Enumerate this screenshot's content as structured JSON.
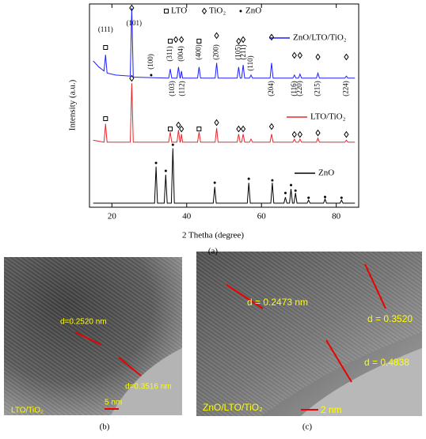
{
  "chart_data": {
    "type": "line",
    "x_label": "2 Thetha (degree)",
    "y_label": "Intensity (a.u.)",
    "xlim": [
      14,
      86
    ],
    "xticks": [
      20,
      40,
      60,
      80
    ],
    "ylim": [
      0,
      100
    ],
    "phase_legend": [
      "LTO",
      "TiO₂",
      "ZnO"
    ],
    "annotations": [
      "(111)",
      "(101)",
      "(100)",
      "(311)",
      "(004)",
      "(400)",
      "(200)",
      "(105)",
      "(211)",
      "(110)",
      "(103)",
      "(112)",
      "(204)",
      "(116)",
      "(220)",
      "(215)",
      "(224)"
    ],
    "series": [
      {
        "name": "ZnO/LTO/TiO₂",
        "color": "#1f1fff",
        "x": [
          15,
          16.5,
          17.9,
          18.3,
          18.7,
          21,
          24.9,
          25.3,
          25.7,
          35.2,
          35.6,
          36.0,
          37.4,
          37.8,
          38.2,
          38.3,
          38.6,
          38.9,
          42.9,
          43.3,
          43.7,
          47.6,
          48.0,
          48.4,
          53.5,
          53.9,
          54.3,
          54.7,
          55.1,
          55.5,
          56.8,
          57.2,
          57.6,
          62.3,
          62.7,
          63.1,
          68.4,
          68.8,
          69.2,
          69.9,
          70.3,
          70.7,
          74.7,
          75.1,
          75.5,
          82.3,
          82.7,
          83.1,
          85
        ],
        "values": [
          72,
          69,
          67,
          75,
          66,
          65,
          64.5,
          98,
          64,
          63.5,
          68,
          63.5,
          63.5,
          69,
          63.5,
          63.5,
          67,
          63.5,
          63.5,
          69,
          63.5,
          63.5,
          71,
          63.5,
          63.5,
          69,
          63.5,
          63.5,
          70,
          63.5,
          63.5,
          65,
          63.5,
          63.5,
          71,
          63.5,
          63.5,
          65,
          63.5,
          63.5,
          65.5,
          63.5,
          63.5,
          66,
          63.5,
          63.5,
          64.5,
          63.5,
          63.5
        ]
      },
      {
        "name": "LTO/TiO₂",
        "color": "#e8282b",
        "x": [
          15,
          17.9,
          18.3,
          18.7,
          24.9,
          25.3,
          25.7,
          35.2,
          35.6,
          36.0,
          37.4,
          37.8,
          38.2,
          38.3,
          38.6,
          38.9,
          42.9,
          43.3,
          43.7,
          47.6,
          48.0,
          48.4,
          53.5,
          53.9,
          54.3,
          54.7,
          55.1,
          55.5,
          56.8,
          57.2,
          57.6,
          62.3,
          62.7,
          63.1,
          68.4,
          68.8,
          69.2,
          69.9,
          70.3,
          70.7,
          74.7,
          75.1,
          75.5,
          82.3,
          82.7,
          83.1,
          85
        ],
        "values": [
          33,
          32,
          41,
          32,
          32,
          61,
          32,
          32,
          37,
          32,
          32,
          38,
          32,
          32,
          36,
          32,
          32,
          37,
          32,
          32,
          39,
          32,
          32,
          36,
          32,
          32,
          36,
          32,
          32,
          33.5,
          32,
          32,
          36,
          32,
          32,
          33.5,
          32,
          32,
          33.5,
          32,
          32,
          34,
          32,
          32,
          33,
          32,
          32
        ]
      },
      {
        "name": "ZnO",
        "color": "#000000",
        "x": [
          15,
          31.4,
          31.8,
          32.2,
          34.0,
          34.4,
          34.8,
          35.9,
          36.3,
          36.7,
          47.1,
          47.5,
          47.9,
          56.2,
          56.6,
          57.0,
          62.5,
          62.9,
          63.3,
          66.0,
          66.4,
          66.8,
          67.5,
          67.9,
          68.3,
          68.7,
          69.1,
          69.5,
          72.2,
          72.6,
          73.0,
          76.6,
          77.0,
          77.4,
          81.0,
          81.4,
          81.8,
          85
        ],
        "values": [
          2,
          2,
          20,
          2,
          2,
          16,
          2,
          2,
          29,
          2,
          2,
          10,
          2,
          2,
          12,
          2,
          2,
          12,
          2,
          2,
          5,
          2,
          2,
          9,
          2,
          2,
          7,
          2,
          2,
          3.5,
          2,
          2,
          4,
          2,
          2,
          3.5,
          2,
          2
        ]
      }
    ]
  },
  "panel_labels": [
    "(a)",
    "(b)",
    "(c)"
  ],
  "images": [
    {
      "caption": "LTO/TiO₂",
      "scale": "5 nm",
      "spacings": [
        "d=0.2520 nm",
        "d=0.3516 nm"
      ]
    },
    {
      "caption": "ZnO/LTO/TiO₂",
      "scale": "2 nm",
      "spacings": [
        "d = 0.2473 nm",
        "d = 0.3520",
        "d = 0.4838"
      ]
    }
  ]
}
